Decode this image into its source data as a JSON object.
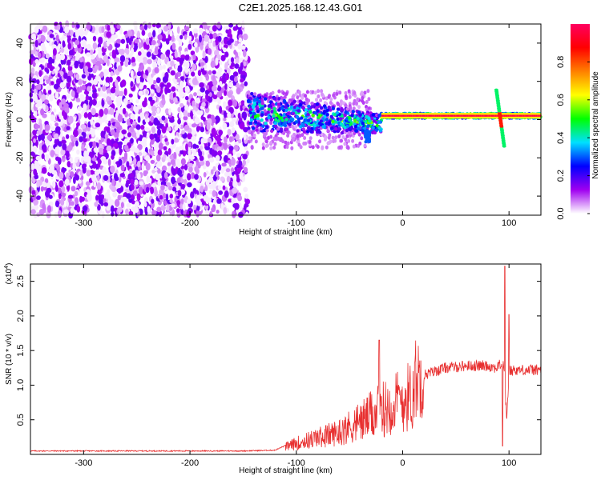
{
  "title": "C2E1.2025.168.12.43.G01",
  "chart_data": [
    {
      "type": "heatmap",
      "xlabel": "Height of straight line (km)",
      "ylabel": "Frequency (Hz)",
      "xlim": [
        -350,
        130
      ],
      "ylim": [
        -50,
        50
      ],
      "xticks": [
        -300,
        -200,
        -100,
        0,
        100
      ],
      "yticks": [
        -40,
        -20,
        0,
        20,
        40
      ],
      "colorbar": {
        "label": "Normalized spectral amplitude",
        "range": [
          0.0,
          1.0
        ],
        "ticks": [
          0.0,
          0.2,
          0.4,
          0.6,
          0.8
        ],
        "tick_labels": [
          "0.0",
          "0.2",
          "0.4",
          "0.6",
          "0.8"
        ],
        "colors": [
          "#ffffff",
          "#a000f0",
          "#0000ff",
          "#00e0ff",
          "#00ff00",
          "#ffff00",
          "#ff8000",
          "#ff0000",
          "#ff0060"
        ]
      },
      "features": [
        {
          "name": "noise",
          "x": [
            -350,
            -145
          ],
          "freq": [
            -50,
            50
          ],
          "amplitude": 0.15
        },
        {
          "name": "signal",
          "x": [
            -145,
            130
          ],
          "freq_center": 2,
          "amplitude": 0.9
        },
        {
          "name": "spike",
          "x": 92,
          "freq": [
            -14,
            16
          ]
        }
      ]
    },
    {
      "type": "line",
      "xlabel": "Height of straight line (km)",
      "ylabel": "SNR (10 * v/v)",
      "y_multiplier": "(x10",
      "y_multiplier_exp": "4",
      "xlim": [
        -350,
        130
      ],
      "ylim": [
        0,
        2.75
      ],
      "xticks": [
        -300,
        -200,
        -100,
        0,
        100
      ],
      "yticks": [
        0.5,
        1.0,
        1.5,
        2.0,
        2.5
      ],
      "ytick_labels": [
        "0.5",
        "1.0",
        "1.5",
        "2.0",
        "2.5"
      ],
      "color": "#e83030",
      "envelope": {
        "x": [
          -350,
          -150,
          -120,
          -100,
          -80,
          -60,
          -40,
          -20,
          0,
          20,
          40,
          60,
          80,
          88,
          92,
          95,
          98,
          100,
          104,
          130
        ],
        "y": [
          0.05,
          0.05,
          0.06,
          0.2,
          0.3,
          0.4,
          0.6,
          0.8,
          1.0,
          1.15,
          1.25,
          1.28,
          1.28,
          1.25,
          1.3,
          1.3,
          0.5,
          1.2,
          1.22,
          1.22
        ]
      },
      "peaks": [
        {
          "x": 96,
          "y": 2.72
        },
        {
          "x": 100,
          "y": 2.02
        },
        {
          "x": -22,
          "y": 1.65
        },
        {
          "x": 94,
          "y": 0.12
        }
      ]
    }
  ]
}
